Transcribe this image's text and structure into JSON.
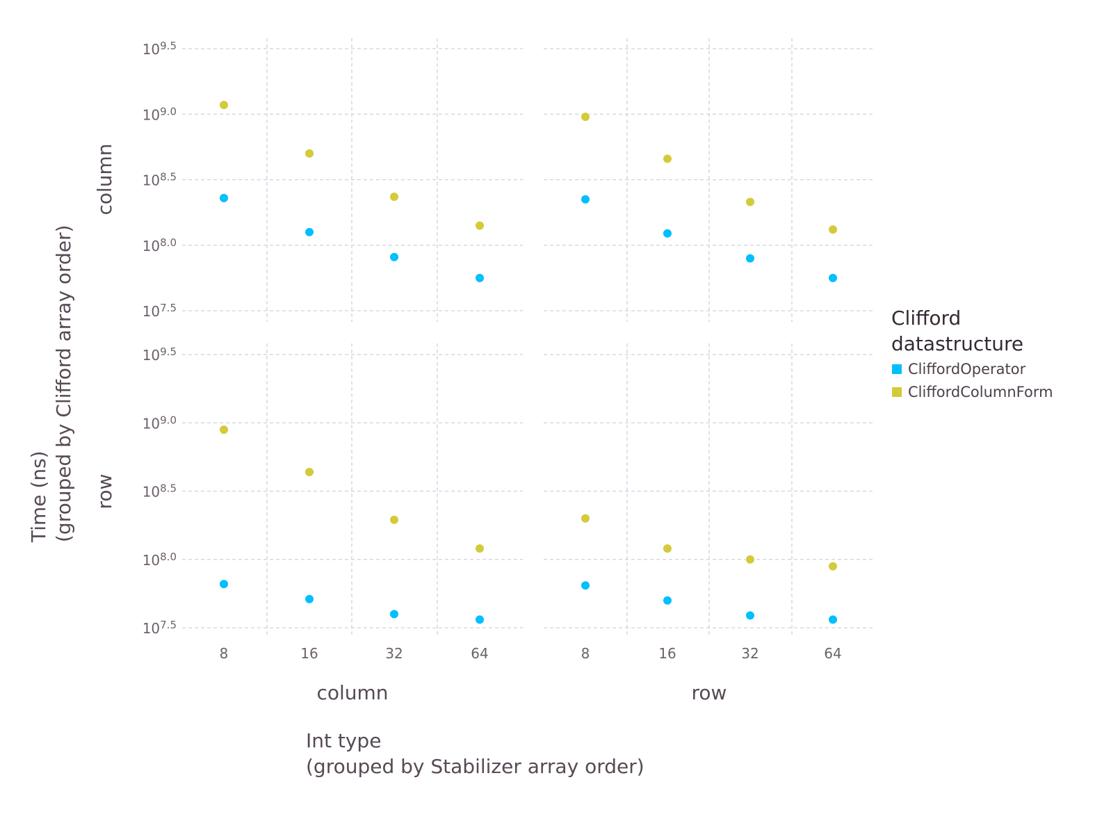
{
  "chart_data": {
    "type": "scatter",
    "facet_layout": "grid",
    "y_scale": "log10",
    "y_tick_labels": [
      "10^7.5",
      "10^8.0",
      "10^8.5",
      "10^9.0",
      "10^9.5"
    ],
    "ylim_log10": [
      7.45,
      9.55
    ],
    "categories": [
      "8",
      "16",
      "32",
      "64"
    ],
    "xlabel_line1": "Int type",
    "xlabel_line2": "(grouped by Stabilizer array order)",
    "ylabel_line1": "Time (ns)",
    "ylabel_line2": "(grouped by Clifford array order)",
    "column_facets": [
      "column",
      "row"
    ],
    "row_facets": [
      "column",
      "row"
    ],
    "legend": {
      "title_line1": "Clifford",
      "title_line2": "datastructure",
      "placement": "right"
    },
    "grid": true,
    "series": [
      {
        "name": "CliffordOperator",
        "color": "#00bfff"
      },
      {
        "name": "CliffordColumnForm",
        "color": "#d4ca3a"
      }
    ],
    "panels": [
      {
        "row_facet": "column",
        "col_facet": "column",
        "log10_values": {
          "CliffordOperator": [
            8.36,
            8.1,
            7.91,
            7.75
          ],
          "CliffordColumnForm": [
            9.07,
            8.7,
            8.37,
            8.15
          ]
        }
      },
      {
        "row_facet": "column",
        "col_facet": "row",
        "log10_values": {
          "CliffordOperator": [
            8.35,
            8.09,
            7.9,
            7.75
          ],
          "CliffordColumnForm": [
            8.98,
            8.66,
            8.33,
            8.12
          ]
        }
      },
      {
        "row_facet": "row",
        "col_facet": "column",
        "log10_values": {
          "CliffordOperator": [
            7.82,
            7.71,
            7.6,
            7.56
          ],
          "CliffordColumnForm": [
            8.95,
            8.64,
            8.29,
            8.08
          ]
        }
      },
      {
        "row_facet": "row",
        "col_facet": "row",
        "log10_values": {
          "CliffordOperator": [
            7.81,
            7.7,
            7.59,
            7.56
          ],
          "CliffordColumnForm": [
            8.3,
            8.08,
            8.0,
            7.95
          ]
        }
      }
    ]
  }
}
